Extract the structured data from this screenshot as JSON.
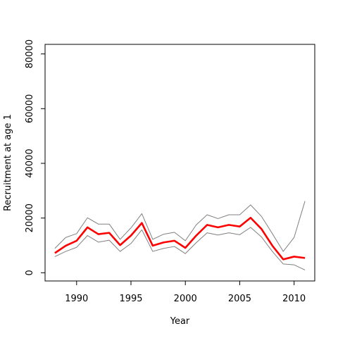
{
  "chart_data": {
    "type": "line",
    "title": "",
    "xlabel": "Year",
    "ylabel": "Recruitment at age 1",
    "xlim": [
      1987.1,
      2011.9
    ],
    "ylim": [
      -3000,
      83500
    ],
    "x_ticks": [
      1990,
      1995,
      2000,
      2005,
      2010
    ],
    "y_ticks": [
      0,
      20000,
      40000,
      60000,
      80000
    ],
    "grid": false,
    "legend": "none",
    "x": [
      1988,
      1989,
      1990,
      1991,
      1992,
      1993,
      1994,
      1995,
      1996,
      1997,
      1998,
      1999,
      2000,
      2001,
      2002,
      2003,
      2004,
      2005,
      2006,
      2007,
      2008,
      2009,
      2010,
      2011
    ],
    "series": [
      {
        "role": "estimate",
        "color": "#ff0000",
        "values": [
          7200,
          9900,
          11700,
          16600,
          14100,
          14600,
          10100,
          13600,
          18200,
          9900,
          11100,
          11700,
          9100,
          13600,
          17500,
          16600,
          17500,
          16900,
          20100,
          16000,
          9900,
          4900,
          5900,
          5400
        ]
      },
      {
        "role": "upper",
        "color": "#808080",
        "values": [
          8900,
          12900,
          14300,
          20100,
          17800,
          17800,
          12200,
          16400,
          21600,
          12200,
          14100,
          14800,
          11700,
          17500,
          21200,
          19800,
          21200,
          21200,
          24800,
          20600,
          14300,
          7800,
          12900,
          26200
        ]
      },
      {
        "role": "lower",
        "color": "#808080",
        "values": [
          5900,
          7800,
          9300,
          13600,
          11200,
          11900,
          7800,
          10700,
          15700,
          7800,
          8900,
          9600,
          7000,
          11000,
          14600,
          13800,
          14600,
          13900,
          16600,
          13100,
          7800,
          3200,
          2900,
          1000
        ]
      }
    ]
  }
}
